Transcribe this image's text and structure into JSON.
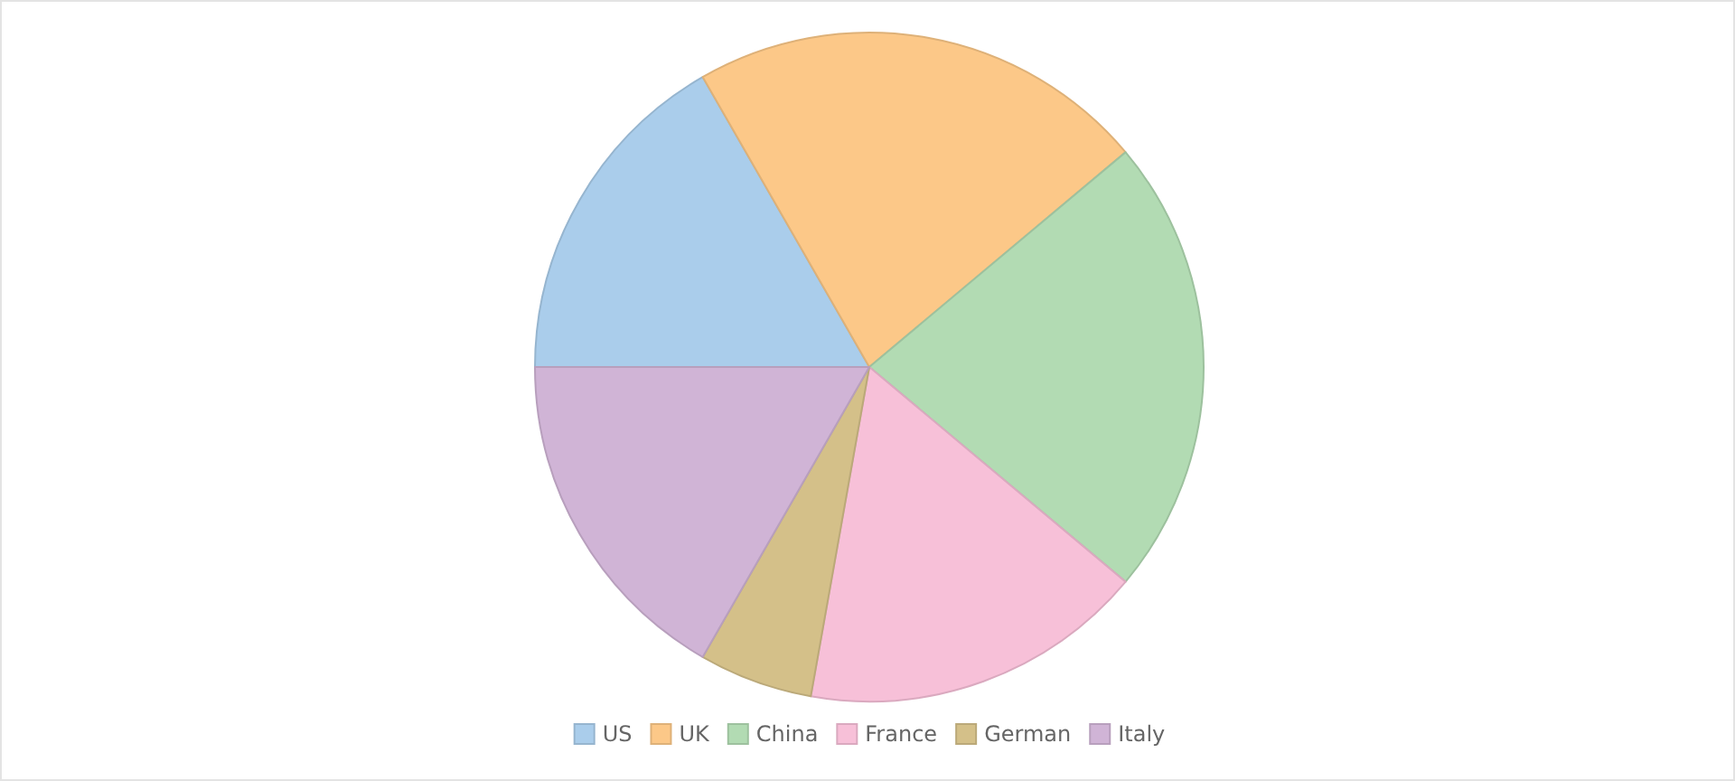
{
  "chart_data": {
    "type": "pie",
    "categories": [
      "US",
      "UK",
      "China",
      "France",
      "German",
      "Italy"
    ],
    "values": [
      16.7,
      22.2,
      22.2,
      16.7,
      5.5,
      16.7
    ],
    "colors": [
      "#aacdeb",
      "#fcc888",
      "#b2dbb3",
      "#f7c0d8",
      "#d4c089",
      "#d0b4d6"
    ],
    "legend": "bottom"
  }
}
